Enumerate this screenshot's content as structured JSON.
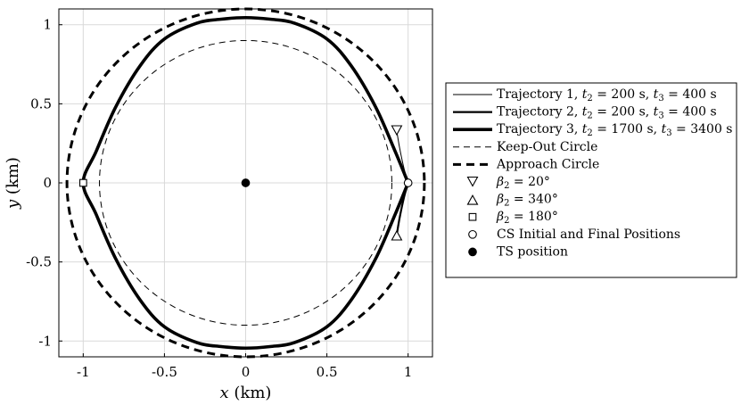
{
  "chart_data": {
    "type": "line",
    "xlabel": "x (km)",
    "ylabel": "y (km)",
    "xlim": [
      -1.15,
      1.15
    ],
    "ylim": [
      -1.1,
      1.1
    ],
    "x_ticks": [
      -1,
      -0.5,
      0,
      0.5,
      1
    ],
    "y_ticks": [
      -1,
      -0.5,
      0,
      0.5,
      1
    ],
    "x_tick_labels": [
      "-1",
      "-0.5",
      "0",
      "0.5",
      "1"
    ],
    "y_tick_labels": [
      "-1",
      "-0.5",
      "0",
      "0.5",
      "1"
    ],
    "grid": true,
    "legend_position": "outside-right",
    "series": [
      {
        "name": "Trajectory 1, t2 = 200 s, t3 = 400 s",
        "legend_parts": [
          "Trajectory 1, ",
          "t",
          "2",
          " = 200 s, ",
          "t",
          "3",
          " = 400 s"
        ],
        "style": "thin-solid",
        "x": [
          1,
          0.975,
          0.948,
          0.93,
          0.948,
          0.975,
          1
        ],
        "y": [
          0,
          0.09,
          0.22,
          0.33,
          0.22,
          0.09,
          0
        ]
      },
      {
        "name": "Trajectory 2, t2 = 200 s, t3 = 400 s",
        "legend_parts": [
          "Trajectory 2, ",
          "t",
          "2",
          " = 200 s, ",
          "t",
          "3",
          " = 400 s"
        ],
        "style": "medium-solid",
        "x": [
          1,
          0.975,
          0.948,
          0.93,
          0.948,
          0.975,
          1
        ],
        "y": [
          0,
          -0.09,
          -0.22,
          -0.33,
          -0.22,
          -0.09,
          0
        ]
      },
      {
        "name": "Trajectory 3, t2 = 1700 s, t3 = 3400 s",
        "legend_parts": [
          "Trajectory 3, ",
          "t",
          "2",
          " = 1700 s, ",
          "t",
          "3",
          " = 3400 s"
        ],
        "style": "thick-solid",
        "x": [
          1,
          0.92,
          0.8,
          0.65,
          0.5,
          0.3,
          0.15,
          0,
          -0.15,
          -0.3,
          -0.5,
          -0.65,
          -0.8,
          -0.92,
          -1,
          -0.92,
          -0.8,
          -0.65,
          -0.5,
          -0.3,
          -0.15,
          0,
          0.15,
          0.3,
          0.5,
          0.65,
          0.8,
          0.92,
          1
        ],
        "y": [
          0,
          0.2,
          0.48,
          0.74,
          0.91,
          1.01,
          1.035,
          1.045,
          1.035,
          1.01,
          0.91,
          0.74,
          0.48,
          0.2,
          0,
          -0.2,
          -0.48,
          -0.74,
          -0.91,
          -1.01,
          -1.035,
          -1.045,
          -1.035,
          -1.01,
          -0.91,
          -0.74,
          -0.48,
          -0.2,
          0
        ]
      },
      {
        "name": "Keep-Out Circle",
        "style": "thin-dashed",
        "circle": {
          "cx": 0,
          "cy": 0,
          "r": 0.9
        }
      },
      {
        "name": "Approach Circle",
        "style": "thick-dashed",
        "circle": {
          "cx": 0,
          "cy": 0,
          "r": 1.1
        }
      }
    ],
    "markers": [
      {
        "name": "β2 = 20°",
        "legend_parts": [
          "β",
          "2",
          " = 20°"
        ],
        "shape": "triangle-down",
        "fill": "#ffffff",
        "x": 0.93,
        "y": 0.33
      },
      {
        "name": "β2 = 340°",
        "legend_parts": [
          "β",
          "2",
          " = 340°"
        ],
        "shape": "triangle-up",
        "fill": "#ffffff",
        "x": 0.93,
        "y": -0.33
      },
      {
        "name": "β2 = 180°",
        "legend_parts": [
          "β",
          "2",
          " = 180°"
        ],
        "shape": "square",
        "fill": "#ffffff",
        "x": -1,
        "y": 0
      },
      {
        "name": "CS Initial and Final Positions",
        "legend_parts": [
          "CS Initial and Final Positions"
        ],
        "shape": "circle",
        "fill": "#ffffff",
        "x": 1,
        "y": 0
      },
      {
        "name": "TS position",
        "legend_parts": [
          "TS position"
        ],
        "shape": "circle",
        "fill": "#000000",
        "x": 0,
        "y": 0
      }
    ]
  }
}
